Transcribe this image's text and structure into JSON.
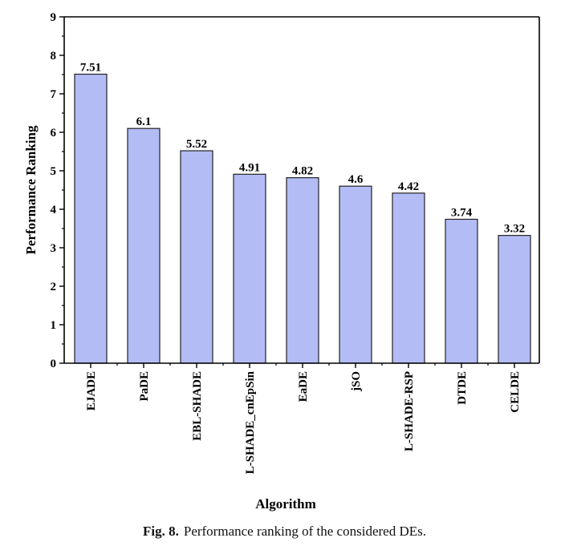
{
  "chart_data": {
    "type": "bar",
    "xlabel": "Algorithm",
    "ylabel": "Performance Ranking",
    "categories": [
      "EJADE",
      "PaDE",
      "EBL-SHADE",
      "L-SHADE_cnEpSin",
      "EaDE",
      "jSO",
      "L-SHADE-RSP",
      "DTDE",
      "CELDE"
    ],
    "values": [
      7.51,
      6.1,
      5.52,
      4.91,
      4.82,
      4.6,
      4.42,
      3.74,
      3.32
    ],
    "value_labels": [
      "7.51",
      "6.1",
      "5.52",
      "4.91",
      "4.82",
      "4.6",
      "4.42",
      "3.74",
      "3.32"
    ],
    "ylim": [
      0,
      9
    ],
    "yticks": [
      0,
      1,
      2,
      3,
      4,
      5,
      6,
      7,
      8,
      9
    ],
    "grid": false,
    "legend": "none",
    "bar_color": "#b3bcf5",
    "bar_edge_color": "#222222"
  },
  "caption": {
    "label": "Fig. 8.",
    "text": "Performance ranking of the considered DEs."
  }
}
